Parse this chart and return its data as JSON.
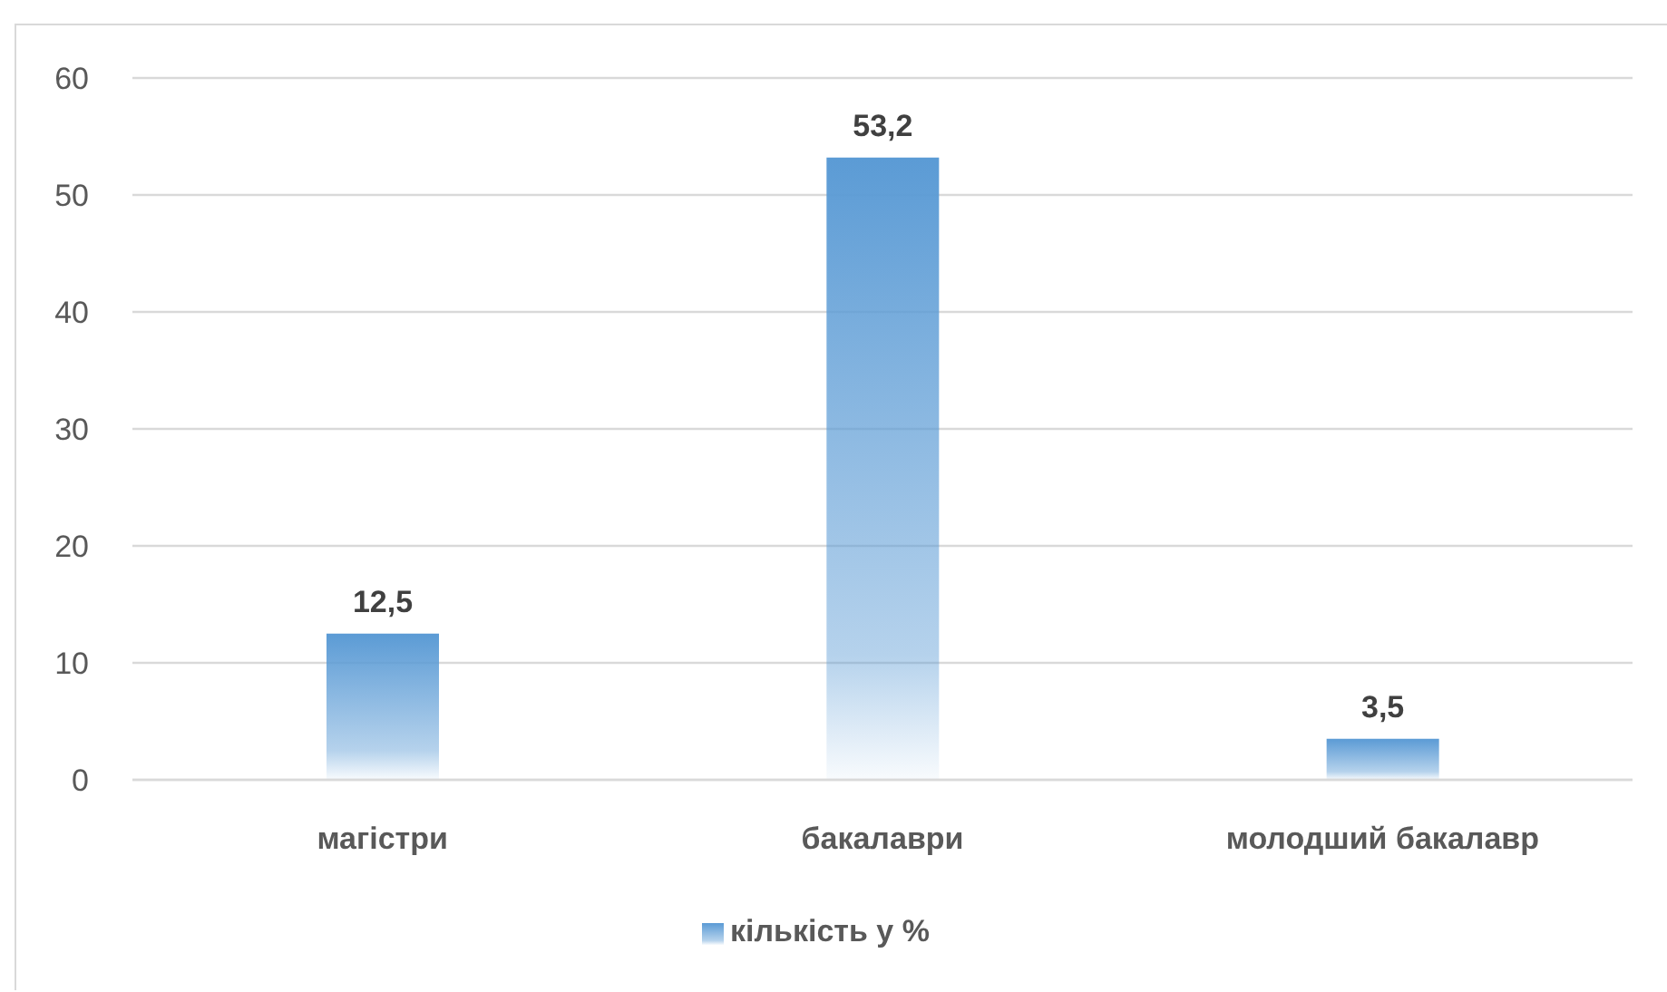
{
  "chart_data": {
    "type": "bar",
    "categories": [
      "магістри",
      "бакалаври",
      "молодший бакалавр"
    ],
    "series": [
      {
        "name": "кількість у %",
        "color": "#5b9bd5",
        "values": [
          12.5,
          53.2,
          3.5
        ],
        "value_labels": [
          "12,5",
          "53,2",
          "3,5"
        ]
      }
    ],
    "ylim": [
      0,
      60
    ],
    "yticks": [
      0,
      10,
      20,
      30,
      40,
      50,
      60
    ],
    "grid": "y",
    "legend": "bottom"
  }
}
